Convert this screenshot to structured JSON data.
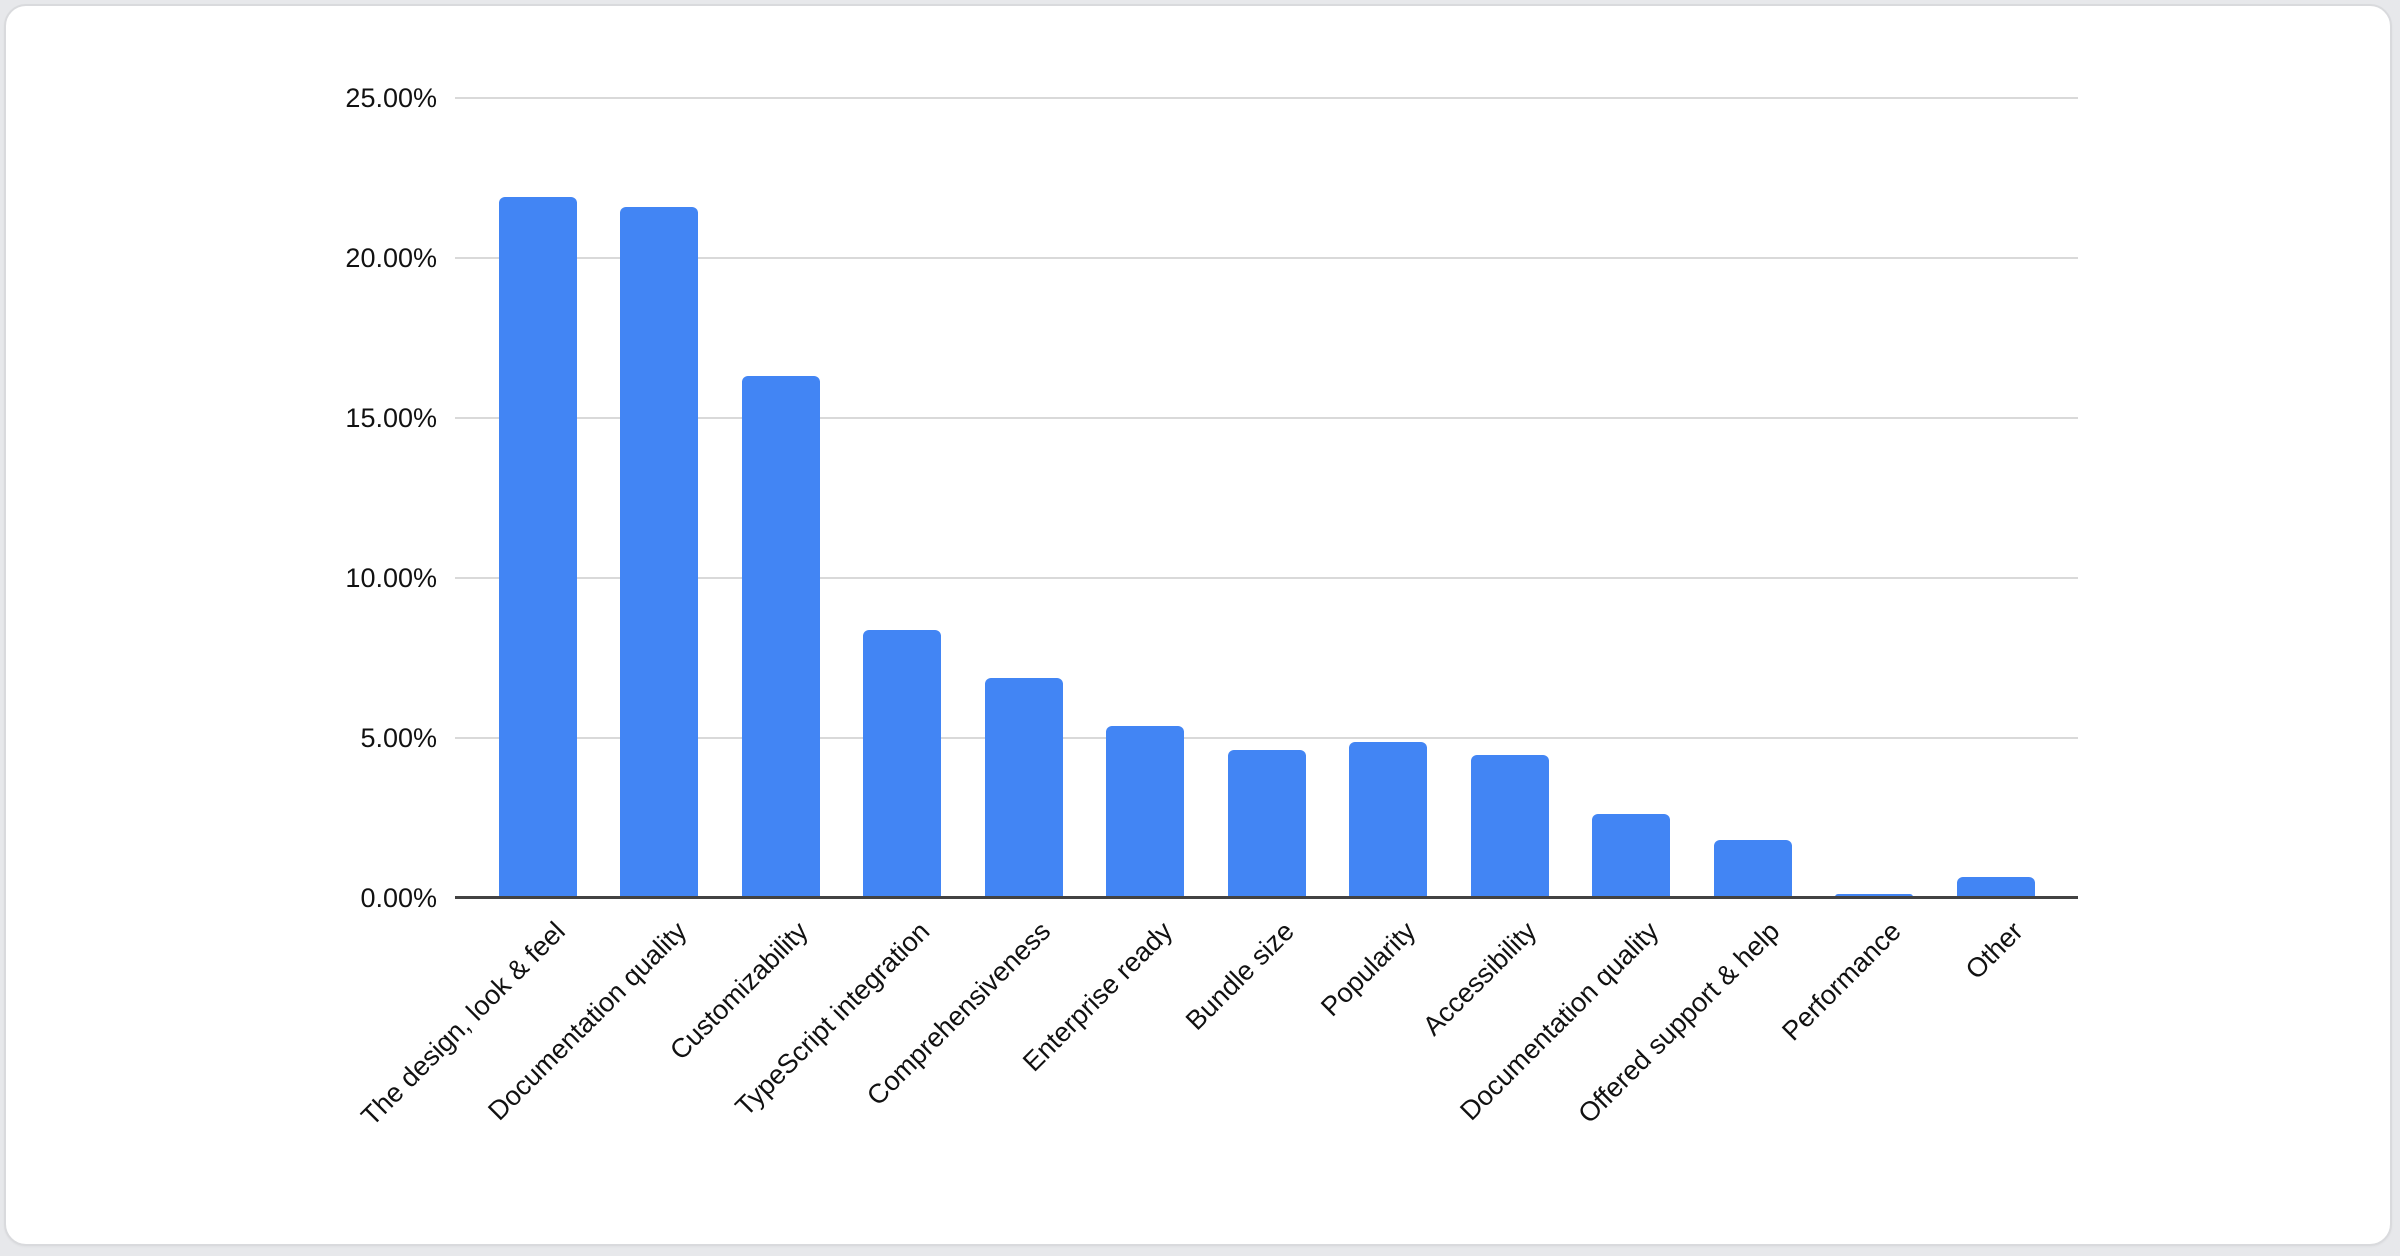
{
  "chart_data": {
    "type": "bar",
    "title": "",
    "categories": [
      "The design, look & feel",
      "Documentation quality",
      "Customizability",
      "TypeScript integration",
      "Comprehensiveness",
      "Enterprise ready",
      "Bundle size",
      "Popularity",
      "Accessibility",
      "Documentation quality",
      "Offered support & help",
      "Performance",
      "Other"
    ],
    "values": [
      21.9,
      21.6,
      16.3,
      8.35,
      6.85,
      5.35,
      4.6,
      4.85,
      4.45,
      2.6,
      1.8,
      0.12,
      0.65
    ],
    "value_unit": "%",
    "xlabel": "",
    "ylabel": "",
    "ylim": [
      0,
      25
    ],
    "y_tick_step": 5,
    "y_tick_labels": [
      "0.00%",
      "5.00%",
      "10.00%",
      "15.00%",
      "20.00%",
      "25.00%"
    ],
    "grid": true,
    "legend": "none",
    "bar_color": "#4285f4",
    "gridline_color": "#d9d9d9",
    "axis_line_color": "#424242",
    "label_color": "#111111",
    "card_background": "#ffffff",
    "page_background": "#e7e8eb",
    "card_border_color": "#d9dadd"
  }
}
